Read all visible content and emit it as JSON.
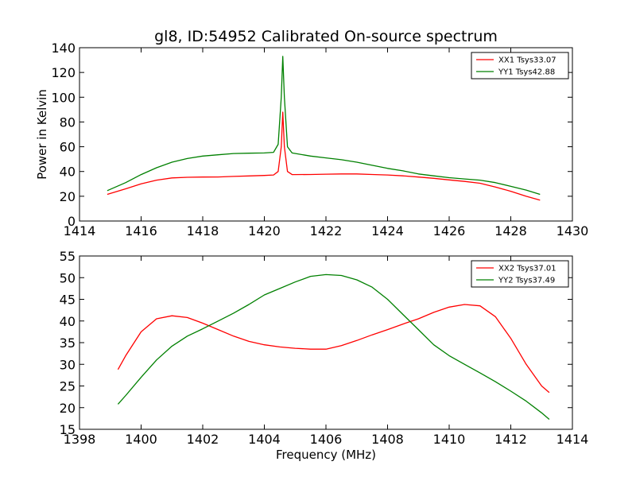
{
  "chart_data": [
    {
      "type": "line",
      "title": "gl8, ID:54952 Calibrated On-source spectrum",
      "xlabel": "",
      "ylabel": "Power in Kelvin",
      "xlim": [
        1414,
        1430
      ],
      "ylim": [
        0,
        140
      ],
      "xticks": [
        1414,
        1416,
        1418,
        1420,
        1422,
        1424,
        1426,
        1428,
        1430
      ],
      "yticks": [
        0,
        20,
        40,
        60,
        80,
        100,
        120,
        140
      ],
      "grid": false,
      "legend": "top-right",
      "series": [
        {
          "name": "XX1 Tsys33.07",
          "color": "#ff0000",
          "x": [
            1414.9,
            1415.5,
            1416.0,
            1416.5,
            1417.0,
            1417.5,
            1418.0,
            1418.5,
            1419.0,
            1419.5,
            1420.0,
            1420.3,
            1420.45,
            1420.55,
            1420.6,
            1420.65,
            1420.75,
            1420.9,
            1421.5,
            1422.0,
            1422.5,
            1423.0,
            1423.5,
            1424.0,
            1424.5,
            1425.0,
            1425.5,
            1426.0,
            1426.5,
            1427.0,
            1427.5,
            1428.0,
            1428.5,
            1428.95
          ],
          "y": [
            21.5,
            26,
            30,
            33,
            34.8,
            35.3,
            35.5,
            35.6,
            36,
            36.4,
            36.8,
            37.2,
            40,
            60,
            88,
            60,
            40,
            37.5,
            37.6,
            37.8,
            38,
            38,
            37.6,
            37.2,
            36.5,
            35.5,
            34.5,
            33.2,
            32,
            30.5,
            27.5,
            24,
            20,
            16.8
          ]
        },
        {
          "name": "YY1 Tsys42.88",
          "color": "#008000",
          "x": [
            1414.9,
            1415.5,
            1416.0,
            1416.5,
            1417.0,
            1417.5,
            1418.0,
            1418.5,
            1419.0,
            1419.5,
            1420.0,
            1420.3,
            1420.45,
            1420.55,
            1420.6,
            1420.65,
            1420.75,
            1420.9,
            1421.5,
            1422.0,
            1422.5,
            1423.0,
            1423.5,
            1424.0,
            1424.5,
            1425.0,
            1425.5,
            1426.0,
            1426.5,
            1427.0,
            1427.5,
            1428.0,
            1428.5,
            1428.95
          ],
          "y": [
            24.5,
            31,
            37.5,
            43,
            47.5,
            50.5,
            52.5,
            53.5,
            54.5,
            54.8,
            55,
            55.5,
            62,
            100,
            133,
            100,
            60,
            55,
            52.5,
            51,
            49.5,
            47.5,
            45,
            42.5,
            40.5,
            38,
            36.5,
            35,
            34,
            33,
            31,
            28,
            25,
            21.5
          ]
        }
      ]
    },
    {
      "type": "line",
      "title": "",
      "xlabel": "Frequency (MHz)",
      "ylabel": "",
      "xlim": [
        1398,
        1414
      ],
      "ylim": [
        15,
        55
      ],
      "xticks": [
        1398,
        1400,
        1402,
        1404,
        1406,
        1408,
        1410,
        1412,
        1414
      ],
      "yticks": [
        15,
        20,
        25,
        30,
        35,
        40,
        45,
        50,
        55
      ],
      "grid": false,
      "legend": "top-right",
      "series": [
        {
          "name": "XX2 Tsys37.01",
          "color": "#ff0000",
          "x": [
            1399.25,
            1399.5,
            1400.0,
            1400.5,
            1401.0,
            1401.5,
            1402.0,
            1402.5,
            1403.0,
            1403.5,
            1404.0,
            1404.5,
            1405.0,
            1405.5,
            1406.0,
            1406.5,
            1407.0,
            1407.5,
            1408.0,
            1408.5,
            1409.0,
            1409.5,
            1410.0,
            1410.5,
            1411.0,
            1411.5,
            1412.0,
            1412.5,
            1413.0,
            1413.25
          ],
          "y": [
            28.8,
            32,
            37.5,
            40.5,
            41.2,
            40.8,
            39.5,
            38,
            36.5,
            35.3,
            34.5,
            34,
            33.7,
            33.5,
            33.5,
            34.3,
            35.5,
            36.8,
            38,
            39.3,
            40.5,
            42,
            43.2,
            43.8,
            43.5,
            41,
            36,
            30,
            25,
            23.5
          ]
        },
        {
          "name": "YY2 Tsys37.49",
          "color": "#008000",
          "x": [
            1399.25,
            1399.5,
            1400.0,
            1400.5,
            1401.0,
            1401.5,
            1402.0,
            1402.5,
            1403.0,
            1403.5,
            1404.0,
            1404.5,
            1405.0,
            1405.5,
            1406.0,
            1406.5,
            1407.0,
            1407.5,
            1408.0,
            1408.5,
            1409.0,
            1409.5,
            1410.0,
            1410.5,
            1411.0,
            1411.5,
            1412.0,
            1412.5,
            1413.0,
            1413.25
          ],
          "y": [
            20.8,
            22.8,
            27,
            31,
            34.2,
            36.5,
            38.2,
            40,
            41.8,
            43.8,
            46,
            47.5,
            49,
            50.3,
            50.7,
            50.5,
            49.5,
            47.8,
            45,
            41.5,
            38,
            34.5,
            32,
            30,
            28,
            26,
            23.8,
            21.5,
            18.8,
            17.3
          ]
        }
      ]
    }
  ]
}
